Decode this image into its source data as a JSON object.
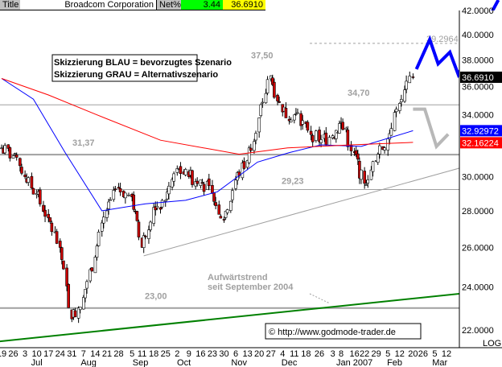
{
  "header": {
    "title_label": "Title",
    "company": "Broadcom Corporation",
    "net_label": "Net%",
    "net_value": "3.44",
    "last_price": "36.6910"
  },
  "chart_data": {
    "type": "candlestick",
    "scale": "log",
    "ylim": [
      22,
      42
    ],
    "xlim": [
      "2006-06-19",
      "2007-03-12"
    ],
    "y_ticks": [
      "42.0000",
      "40.0000",
      "38.0000",
      "36.0000",
      "34.0000",
      "30.0000",
      "28.0000",
      "26.0000",
      "24.0000",
      "22.0000"
    ],
    "scale_label": "LOG",
    "x_ticks": [
      {
        "date": "2006-06-19",
        "label": "19"
      },
      {
        "date": "2006-06-26",
        "label": "26"
      },
      {
        "date": "2006-07-03",
        "label": "3"
      },
      {
        "date": "2006-07-10",
        "label": "10"
      },
      {
        "date": "2006-07-17",
        "label": "17"
      },
      {
        "date": "2006-07-24",
        "label": "24"
      },
      {
        "date": "2006-07-31",
        "label": "31"
      },
      {
        "date": "2006-08-07",
        "label": "7"
      },
      {
        "date": "2006-08-14",
        "label": "14"
      },
      {
        "date": "2006-08-21",
        "label": "21"
      },
      {
        "date": "2006-08-28",
        "label": "28"
      },
      {
        "date": "2006-09-05",
        "label": "5"
      },
      {
        "date": "2006-09-11",
        "label": "11"
      },
      {
        "date": "2006-09-18",
        "label": "18"
      },
      {
        "date": "2006-09-25",
        "label": "25"
      },
      {
        "date": "2006-10-02",
        "label": "2"
      },
      {
        "date": "2006-10-09",
        "label": "9"
      },
      {
        "date": "2006-10-16",
        "label": "16"
      },
      {
        "date": "2006-10-23",
        "label": "23"
      },
      {
        "date": "2006-10-30",
        "label": "30"
      },
      {
        "date": "2006-11-06",
        "label": "6"
      },
      {
        "date": "2006-11-13",
        "label": "13"
      },
      {
        "date": "2006-11-20",
        "label": "20"
      },
      {
        "date": "2006-11-27",
        "label": "27"
      },
      {
        "date": "2006-12-04",
        "label": "4"
      },
      {
        "date": "2006-12-11",
        "label": "11"
      },
      {
        "date": "2006-12-18",
        "label": "18"
      },
      {
        "date": "2006-12-26",
        "label": "26"
      },
      {
        "date": "2007-01-03",
        "label": "3"
      },
      {
        "date": "2007-01-08",
        "label": "8"
      },
      {
        "date": "2007-01-16",
        "label": "16"
      },
      {
        "date": "2007-01-22",
        "label": "22"
      },
      {
        "date": "2007-01-29",
        "label": "29"
      },
      {
        "date": "2007-02-05",
        "label": "5"
      },
      {
        "date": "2007-02-12",
        "label": "12"
      },
      {
        "date": "2007-02-20",
        "label": "20"
      },
      {
        "date": "2007-02-26",
        "label": "26"
      },
      {
        "date": "2007-03-05",
        "label": "5"
      },
      {
        "date": "2007-03-12",
        "label": "12"
      }
    ],
    "month_labels": [
      {
        "date": "2006-07-10",
        "label": "Jul"
      },
      {
        "date": "2006-08-10",
        "label": "Aug"
      },
      {
        "date": "2006-09-10",
        "label": "Sep"
      },
      {
        "date": "2006-10-06",
        "label": "Oct"
      },
      {
        "date": "2006-11-08",
        "label": "Nov"
      },
      {
        "date": "2006-12-08",
        "label": "Dec"
      },
      {
        "date": "2007-01-16",
        "label": "Jan 2007"
      },
      {
        "date": "2007-02-09",
        "label": "Feb"
      },
      {
        "date": "2007-03-08",
        "label": "Mar"
      }
    ],
    "weekly_closes": [
      [
        "2006-06-19",
        31.8
      ],
      [
        "2006-06-26",
        31.3
      ],
      [
        "2006-07-03",
        30.0
      ],
      [
        "2006-07-10",
        29.0
      ],
      [
        "2006-07-17",
        27.6
      ],
      [
        "2006-07-24",
        26.0
      ],
      [
        "2006-07-31",
        22.5
      ],
      [
        "2006-08-07",
        23.5
      ],
      [
        "2006-08-14",
        25.5
      ],
      [
        "2006-08-21",
        28.0
      ],
      [
        "2006-08-28",
        29.3
      ],
      [
        "2006-09-05",
        28.8
      ],
      [
        "2006-09-11",
        26.0
      ],
      [
        "2006-09-18",
        28.2
      ],
      [
        "2006-09-25",
        28.6
      ],
      [
        "2006-10-02",
        30.5
      ],
      [
        "2006-10-09",
        30.0
      ],
      [
        "2006-10-16",
        29.8
      ],
      [
        "2006-10-23",
        29.0
      ],
      [
        "2006-10-30",
        27.5
      ],
      [
        "2006-11-06",
        29.8
      ],
      [
        "2006-11-13",
        31.0
      ],
      [
        "2006-11-20",
        33.8
      ],
      [
        "2006-11-27",
        36.8
      ],
      [
        "2006-12-04",
        34.2
      ],
      [
        "2006-12-11",
        34.0
      ],
      [
        "2006-12-18",
        33.4
      ],
      [
        "2006-12-26",
        32.2
      ],
      [
        "2007-01-03",
        32.6
      ],
      [
        "2007-01-08",
        33.5
      ],
      [
        "2007-01-16",
        31.5
      ],
      [
        "2007-01-22",
        29.6
      ],
      [
        "2007-01-29",
        31.0
      ],
      [
        "2007-02-05",
        32.4
      ],
      [
        "2007-02-12",
        34.8
      ],
      [
        "2007-02-20",
        36.691
      ]
    ],
    "moving_averages": [
      {
        "color": "#0000ff",
        "last": "32.92972",
        "points": [
          [
            "2006-06-19",
            36.6
          ],
          [
            "2006-07-08",
            35.1
          ],
          [
            "2006-07-27",
            31.5
          ],
          [
            "2006-08-18",
            28.0
          ],
          [
            "2006-09-13",
            28.4
          ],
          [
            "2006-10-07",
            28.6
          ],
          [
            "2006-10-26",
            29.1
          ],
          [
            "2006-11-19",
            30.9
          ],
          [
            "2006-12-08",
            31.5
          ],
          [
            "2006-12-27",
            32.0
          ],
          [
            "2007-01-20",
            31.9
          ],
          [
            "2007-02-20",
            32.93
          ]
        ]
      },
      {
        "color": "#ff0000",
        "last": "32.16224",
        "points": [
          [
            "2006-06-19",
            36.6
          ],
          [
            "2006-07-17",
            35.4
          ],
          [
            "2006-08-15",
            34.0
          ],
          [
            "2006-09-22",
            32.3
          ],
          [
            "2006-11-08",
            31.4
          ],
          [
            "2006-12-07",
            31.8
          ],
          [
            "2007-01-14",
            32.0
          ],
          [
            "2007-02-20",
            32.16
          ]
        ]
      }
    ],
    "levels": [
      {
        "value": 31.37,
        "label": "31,37",
        "color": "#a0a0a0"
      },
      {
        "value": 23.0,
        "label": "23,00",
        "color": "#a0a0a0"
      },
      {
        "value": 34.7,
        "label": "34,70",
        "color": "#a0a0a0"
      },
      {
        "value": 29.23,
        "label": "29,23",
        "color": "#a0a0a0"
      },
      {
        "value": 39.2964,
        "label": "39.2964",
        "color": "#a0a0a0",
        "dashed": true
      }
    ],
    "peak_label": {
      "value": 37.5,
      "label": "37,50"
    },
    "trend_lines": [
      {
        "color": "#a0a0a0",
        "points": [
          [
            "2006-09-12",
            25.56
          ],
          [
            "2007-04-12",
            31.2
          ]
        ]
      },
      {
        "color": "#008000",
        "points": [
          [
            "2006-06-18",
            21.5
          ],
          [
            "2007-04-16",
            23.9
          ]
        ],
        "label_lines": [
          "Aufwärtstrend",
          "seit September 2004"
        ]
      }
    ],
    "scenarios": [
      {
        "color": "#0000ff",
        "points": [
          [
            "2007-02-22",
            37.3
          ],
          [
            "2007-03-02",
            39.6
          ],
          [
            "2007-03-07",
            37.7
          ],
          [
            "2007-03-14",
            38.6
          ],
          [
            "2007-03-19",
            36.9
          ],
          [
            "2007-04-12",
            42.9
          ]
        ]
      },
      {
        "color": "#b8b8b8",
        "points": [
          [
            "2007-02-20",
            34.4
          ],
          [
            "2007-02-27",
            34.4
          ],
          [
            "2007-03-06",
            31.9
          ],
          [
            "2007-03-13",
            32.7
          ]
        ]
      }
    ],
    "legend": [
      "Skizzierung BLAU = bevorzugtes Szenario",
      "Skizzierung GRAU = Alternativszenario"
    ],
    "copyright": "© http://www.godmode-trader.de"
  }
}
